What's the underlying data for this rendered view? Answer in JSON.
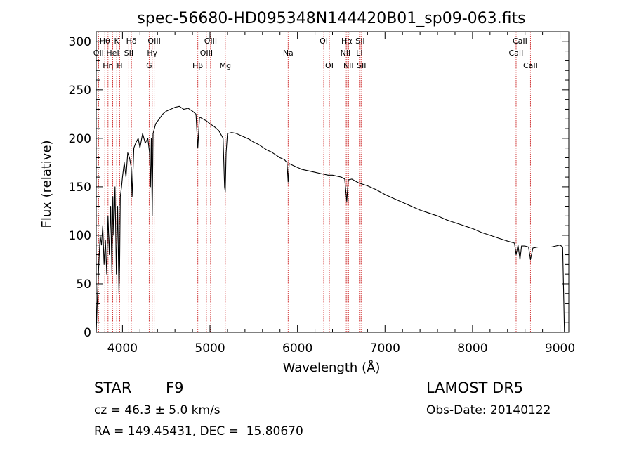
{
  "chart_data": {
    "type": "line",
    "title": "spec-56680-HD095348N144420B01_sp09-063.fits",
    "xlabel": "Wavelength (Å)",
    "ylabel": "Flux (relative)",
    "xlim": [
      3700,
      9100
    ],
    "ylim": [
      0,
      310
    ],
    "xticks": [
      4000,
      5000,
      6000,
      7000,
      8000,
      9000
    ],
    "yticks": [
      0,
      50,
      100,
      150,
      200,
      250,
      300
    ],
    "series": [
      {
        "x": [
          3700,
          3715,
          3730,
          3745,
          3760,
          3775,
          3790,
          3805,
          3820,
          3835,
          3850,
          3865,
          3880,
          3890,
          3900,
          3915,
          3930,
          3945,
          3960,
          3968,
          3975,
          3990,
          4000,
          4020,
          4040,
          4060,
          4080,
          4100,
          4110,
          4130,
          4150,
          4180,
          4200,
          4230,
          4260,
          4290,
          4310,
          4320,
          4330,
          4340,
          4350,
          4380,
          4420,
          4460,
          4500,
          4550,
          4600,
          4650,
          4700,
          4750,
          4800,
          4840,
          4861,
          4880,
          4920,
          4960,
          5000,
          5050,
          5100,
          5150,
          5167,
          5175,
          5184,
          5200,
          5250,
          5300,
          5350,
          5400,
          5450,
          5500,
          5550,
          5600,
          5650,
          5700,
          5750,
          5800,
          5850,
          5880,
          5893,
          5905,
          5950,
          6000,
          6050,
          6100,
          6150,
          6200,
          6250,
          6300,
          6350,
          6400,
          6450,
          6500,
          6540,
          6563,
          6580,
          6620,
          6700,
          6800,
          6900,
          7000,
          7100,
          7200,
          7300,
          7400,
          7500,
          7600,
          7700,
          7800,
          7900,
          8000,
          8100,
          8200,
          8300,
          8400,
          8480,
          8498,
          8520,
          8542,
          8560,
          8600,
          8640,
          8662,
          8690,
          8750,
          8800,
          8850,
          8900,
          8950,
          9000,
          9030,
          9050
        ],
        "y": [
          0,
          40,
          70,
          100,
          90,
          110,
          70,
          95,
          60,
          120,
          80,
          130,
          60,
          140,
          100,
          150,
          60,
          130,
          40,
          70,
          140,
          150,
          160,
          175,
          160,
          185,
          180,
          170,
          140,
          190,
          195,
          200,
          190,
          205,
          195,
          200,
          185,
          150,
          200,
          120,
          205,
          215,
          220,
          225,
          228,
          230,
          232,
          233,
          230,
          231,
          228,
          225,
          190,
          222,
          220,
          218,
          215,
          212,
          208,
          200,
          150,
          145,
          185,
          205,
          206,
          205,
          203,
          201,
          199,
          196,
          194,
          191,
          188,
          186,
          183,
          180,
          178,
          175,
          155,
          174,
          172,
          170,
          168,
          167,
          166,
          165,
          164,
          163,
          162,
          162,
          161,
          160,
          158,
          135,
          157,
          158,
          154,
          151,
          147,
          142,
          138,
          134,
          130,
          126,
          123,
          120,
          116,
          113,
          110,
          107,
          103,
          100,
          97,
          94,
          92,
          80,
          90,
          75,
          89,
          89,
          88,
          75,
          87,
          88,
          88,
          88,
          88,
          89,
          90,
          88,
          0
        ]
      }
    ],
    "lines": [
      {
        "wl": 3727,
        "label": "OII",
        "row": 1
      },
      {
        "wl": 3798,
        "label": "Hθ",
        "row": 0
      },
      {
        "wl": 3835,
        "label": "Hη",
        "row": 2
      },
      {
        "wl": 3889,
        "label": "HeI",
        "row": 1
      },
      {
        "wl": 3934,
        "label": "K",
        "row": 0
      },
      {
        "wl": 3968,
        "label": "H",
        "row": 2
      },
      {
        "wl": 4072,
        "label": "SII",
        "row": 1
      },
      {
        "wl": 4102,
        "label": "Hδ",
        "row": 0
      },
      {
        "wl": 4305,
        "label": "G",
        "row": 2
      },
      {
        "wl": 4340,
        "label": "Hγ",
        "row": 1
      },
      {
        "wl": 4363,
        "label": "OIII",
        "row": 0
      },
      {
        "wl": 4861,
        "label": "Hβ",
        "row": 2
      },
      {
        "wl": 4959,
        "label": "OIII",
        "row": 1
      },
      {
        "wl": 5007,
        "label": "OIII",
        "row": 0
      },
      {
        "wl": 5175,
        "label": "Mg",
        "row": 2
      },
      {
        "wl": 5893,
        "label": "Na",
        "row": 1
      },
      {
        "wl": 6300,
        "label": "OI",
        "row": 0
      },
      {
        "wl": 6364,
        "label": "OI",
        "row": 2
      },
      {
        "wl": 6548,
        "label": "NII",
        "row": 1
      },
      {
        "wl": 6563,
        "label": "Hα",
        "row": 0
      },
      {
        "wl": 6583,
        "label": "NII",
        "row": 2
      },
      {
        "wl": 6707,
        "label": "Li",
        "row": 1
      },
      {
        "wl": 6716,
        "label": "SII",
        "row": 0
      },
      {
        "wl": 6731,
        "label": "SII",
        "row": 2
      },
      {
        "wl": 8498,
        "label": "CaII",
        "row": 1
      },
      {
        "wl": 8542,
        "label": "CaII",
        "row": 0
      },
      {
        "wl": 8662,
        "label": "CaII",
        "row": 2
      }
    ]
  },
  "info": {
    "class_label": "STAR",
    "subclass": "F9",
    "survey": "LAMOST DR5",
    "cz": "cz = 46.3 ± 5.0 km/s",
    "obs_date": "Obs-Date: 20140122",
    "radec": "RA = 149.45431, DEC =  15.80670"
  },
  "colors": {
    "line_markers": "#cc2222",
    "spectrum": "#000000",
    "axes": "#000000"
  }
}
